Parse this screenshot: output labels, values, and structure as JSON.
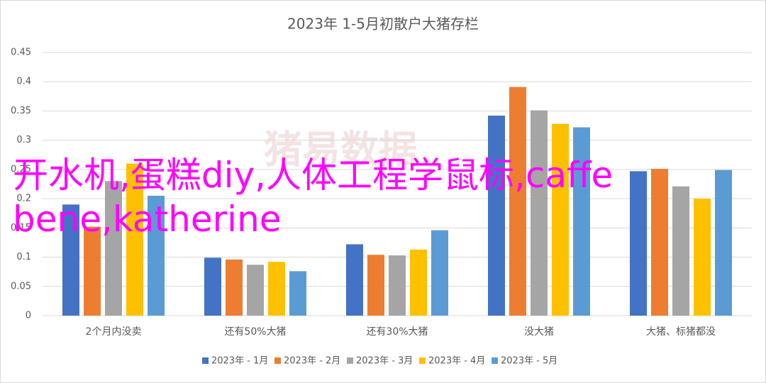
{
  "chart_data": {
    "type": "bar",
    "title": "2023年 1-5月初散户大猪存栏",
    "watermark": "猪易数据",
    "categories": [
      "2个月内没卖",
      "还有50%大猪",
      "还有30%大猪",
      "没大猪",
      "大猪、标猪都没"
    ],
    "series": [
      {
        "name": "2023年 - 1月",
        "color": "#4472c4",
        "values": [
          0.19,
          0.099,
          0.122,
          0.342,
          0.247
        ]
      },
      {
        "name": "2023年 - 2月",
        "color": "#ed7d31",
        "values": [
          0.152,
          0.096,
          0.104,
          0.391,
          0.251
        ]
      },
      {
        "name": "2023年 - 3月",
        "color": "#a5a5a5",
        "values": [
          0.23,
          0.087,
          0.103,
          0.351,
          0.221
        ]
      },
      {
        "name": "2023年 - 4月",
        "color": "#ffc000",
        "values": [
          0.26,
          0.092,
          0.113,
          0.328,
          0.2
        ]
      },
      {
        "name": "2023年 - 5月",
        "color": "#5b9bd5",
        "values": [
          0.205,
          0.076,
          0.146,
          0.322,
          0.249
        ]
      }
    ],
    "ylim": [
      0,
      0.45
    ],
    "yticks": [
      0,
      0.05,
      0.1,
      0.15,
      0.2,
      0.25,
      0.3,
      0.35,
      0.4,
      0.45
    ],
    "grid": true,
    "legend": "bottom",
    "overlay_text": "开水机,蛋糕diy,人体工程学鼠标,caffe bene,katherine"
  }
}
